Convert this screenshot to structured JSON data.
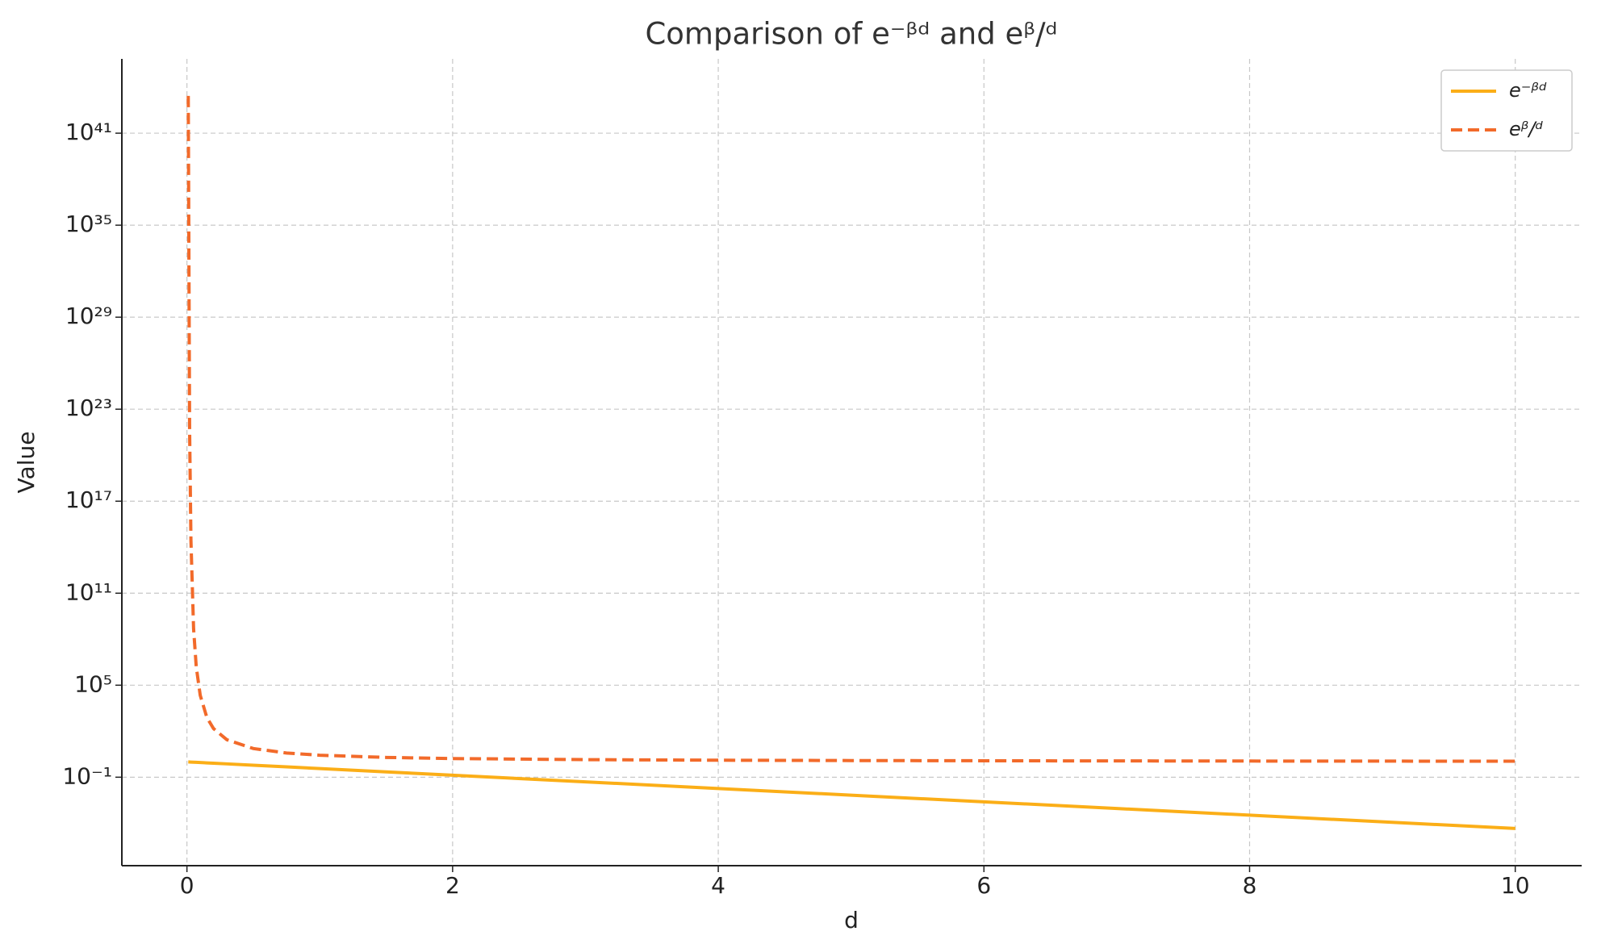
{
  "chart_data": {
    "type": "line",
    "title": "Comparison of e⁻ᵝᵈ and eᵝ/ᵈ",
    "x_label": "d",
    "y_label": "Value",
    "x": [
      0.01,
      0.02,
      0.03,
      0.05,
      0.07,
      0.1,
      0.15,
      0.2,
      0.3,
      0.5,
      0.75,
      1,
      1.5,
      2,
      3,
      4,
      5,
      6,
      7,
      8,
      9,
      10
    ],
    "series": [
      {
        "name": "e⁻ᵝᵈ",
        "color": "#fbae17",
        "dash": false,
        "values": [
          0.99,
          0.98,
          0.97,
          0.951,
          0.932,
          0.905,
          0.861,
          0.819,
          0.741,
          0.607,
          0.472,
          0.368,
          0.223,
          0.135,
          0.0498,
          0.0183,
          0.00674,
          0.00248,
          0.000912,
          0.000335,
          0.000123,
          4.54e-05
        ]
      },
      {
        "name": "eᵝ/ᵈ",
        "color": "#f26a2a",
        "dash": true,
        "values": [
          2.69e+43,
          5.18e+21,
          299000000000000.0,
          485000000.0,
          1600000.0,
          22026,
          786,
          148.4,
          28.0,
          7.39,
          3.79,
          2.718,
          1.948,
          1.649,
          1.396,
          1.284,
          1.221,
          1.181,
          1.154,
          1.133,
          1.118,
          1.105
        ]
      }
    ],
    "xlim": [
      -0.49,
      10.5
    ],
    "xticks": [
      0,
      2,
      4,
      6,
      8,
      10
    ],
    "ylim": [
      1.7e-07,
      7e+45
    ],
    "log_y": true,
    "yticks": [
      {
        "value": 0.1,
        "label": "10⁻¹"
      },
      {
        "value": 100000.0,
        "label": "10⁵"
      },
      {
        "value": 100000000000.0,
        "label": "10¹¹"
      },
      {
        "value": 1e+17,
        "label": "10¹⁷"
      },
      {
        "value": 1e+23,
        "label": "10²³"
      },
      {
        "value": 1e+29,
        "label": "10²⁹"
      },
      {
        "value": 1e+35,
        "label": "10³⁵"
      },
      {
        "value": 1e+41,
        "label": "10⁴¹"
      }
    ],
    "grid": true,
    "legend": "upper right"
  }
}
